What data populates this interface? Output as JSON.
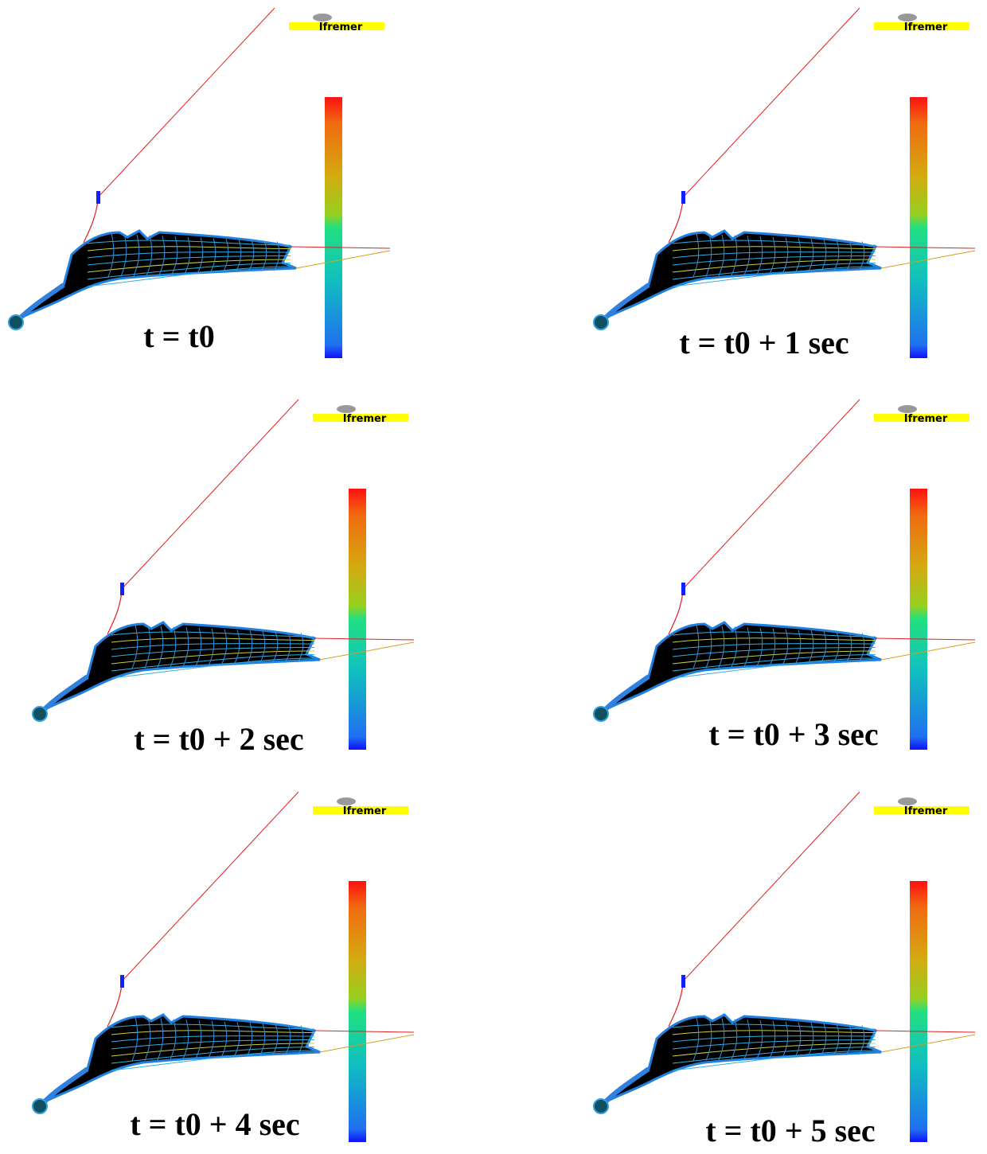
{
  "panels": [
    {
      "label": "t = t0",
      "logo": "Ifremer"
    },
    {
      "label": "t = t0 + 1 sec",
      "logo": "Ifremer"
    },
    {
      "label": "t = t0 + 2 sec",
      "logo": "Ifremer"
    },
    {
      "label": "t = t0 + 3 sec",
      "logo": "Ifremer"
    },
    {
      "label": "t = t0 + 4 sec",
      "logo": "Ifremer"
    },
    {
      "label": "t = t0 + 5 sec",
      "logo": "Ifremer"
    }
  ]
}
